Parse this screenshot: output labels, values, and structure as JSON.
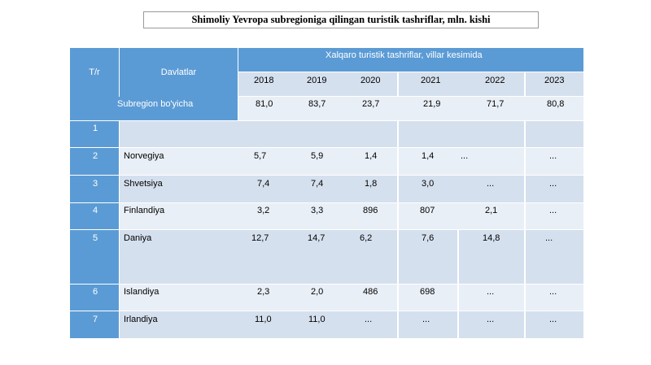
{
  "title": "Shimoliy Yevropa subregioniga qilingan turistik tashriflar, mln. kishi",
  "header": {
    "num_col": "T/r",
    "country_col": "Davlatlar",
    "group_title": "Xalqaro turistik tashriflar, villar kesimida",
    "years": [
      "2018",
      "2019",
      "2020",
      "2021",
      "2022",
      "2023"
    ]
  },
  "subregion": {
    "label": "Subregion bo'yicha",
    "values": [
      "81,0",
      "83,7",
      "23,7",
      "21,9",
      "71,7",
      "80,8"
    ]
  },
  "rows": [
    {
      "num": "1",
      "country": "",
      "values": [
        "",
        "",
        "",
        "",
        "",
        ""
      ]
    },
    {
      "num": "2",
      "country": "Norvegiya",
      "values": [
        "5,7",
        "5,9",
        "1,4",
        "1,4",
        "...",
        "..."
      ]
    },
    {
      "num": "3",
      "country": "Shvetsiya",
      "values": [
        "7,4",
        "7,4",
        "1,8",
        "3,0",
        "...",
        "..."
      ]
    },
    {
      "num": "4",
      "country": "Finlandiya",
      "values": [
        "3,2",
        "3,3",
        "896",
        "807",
        "2,1",
        "..."
      ]
    },
    {
      "num": "5",
      "country": "Daniya",
      "values": [
        "12,7",
        "14,7",
        "6,2",
        "7,6",
        "14,8",
        "..."
      ]
    },
    {
      "num": "6",
      "country": "Islandiya",
      "values": [
        "2,3",
        "2,0",
        "486",
        "698",
        "...",
        "..."
      ]
    },
    {
      "num": "7",
      "country": "Irlandiya",
      "values": [
        "11,0",
        "11,0",
        "...",
        "...",
        "...",
        "..."
      ]
    }
  ]
}
